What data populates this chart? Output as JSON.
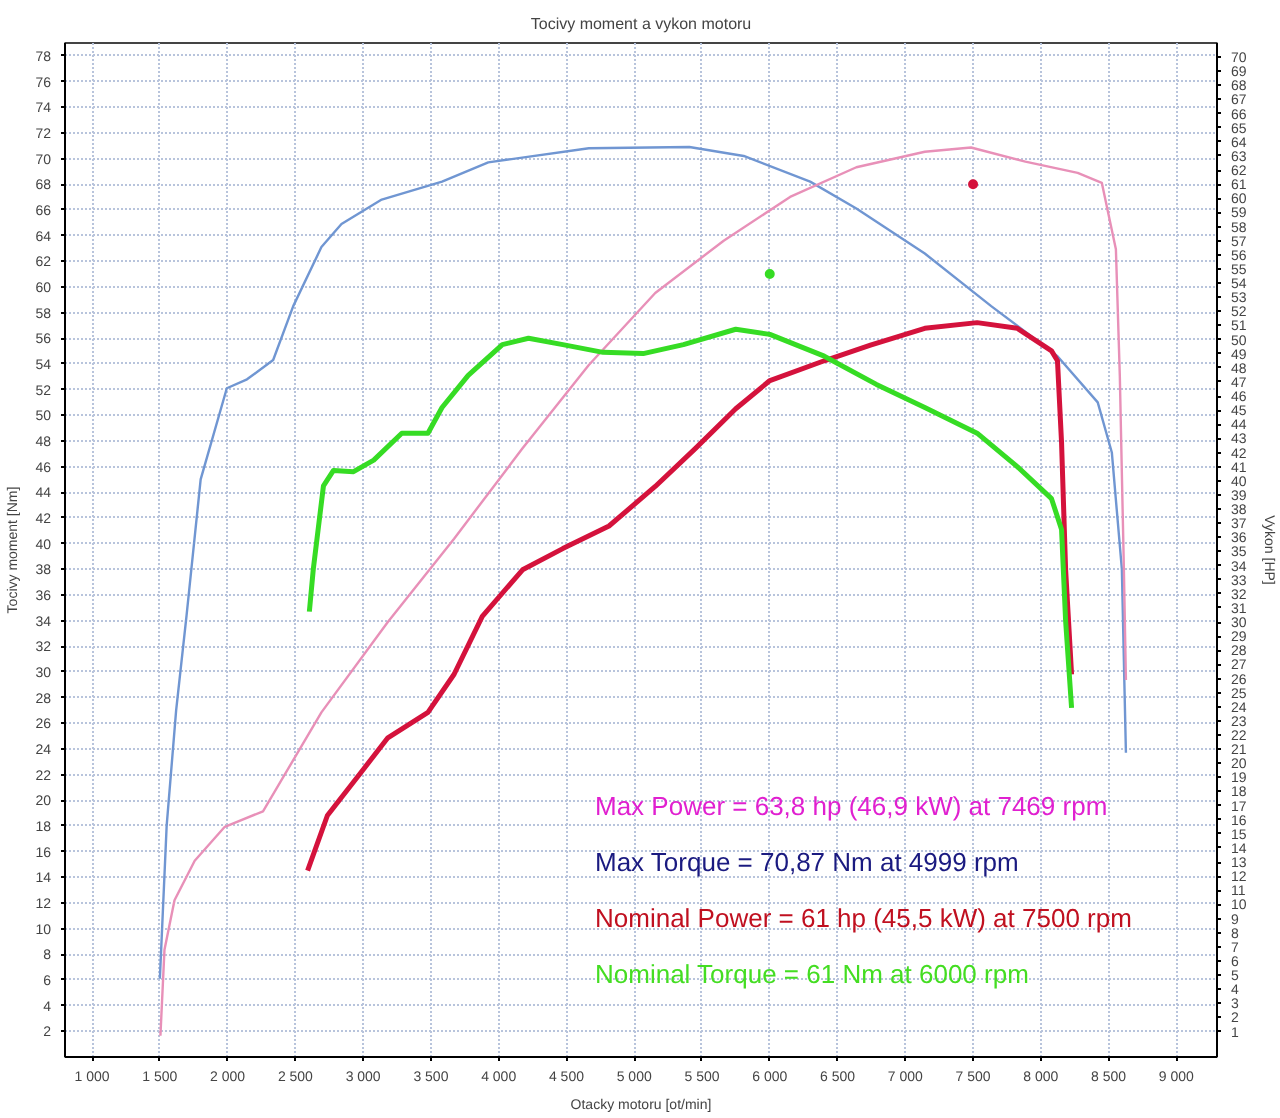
{
  "chart_data": {
    "type": "line",
    "title": "Tocivy moment a vykon motoru",
    "xlabel": "Otacky motoru [ot/min]",
    "ylabel": "Tocivy moment [Nm]",
    "y2label": "Vykon [HP]",
    "xlim": [
      800,
      9300
    ],
    "ylim": [
      0,
      79
    ],
    "y2lim": [
      -0.8,
      71
    ],
    "xticks": [
      {
        "value": 1000,
        "label": "1 000"
      },
      {
        "value": 1500,
        "label": "1 500"
      },
      {
        "value": 2000,
        "label": "2 000"
      },
      {
        "value": 2500,
        "label": "2 500"
      },
      {
        "value": 3000,
        "label": "3 000"
      },
      {
        "value": 3500,
        "label": "3 500"
      },
      {
        "value": 4000,
        "label": "4 000"
      },
      {
        "value": 4500,
        "label": "4 500"
      },
      {
        "value": 5000,
        "label": "5 000"
      },
      {
        "value": 5500,
        "label": "5 500"
      },
      {
        "value": 6000,
        "label": "6 000"
      },
      {
        "value": 6500,
        "label": "6 500"
      },
      {
        "value": 7000,
        "label": "7 000"
      },
      {
        "value": 7500,
        "label": "7 500"
      },
      {
        "value": 8000,
        "label": "8 000"
      },
      {
        "value": 8500,
        "label": "8 500"
      },
      {
        "value": 9000,
        "label": "9 000"
      }
    ],
    "yticks": [
      2,
      4,
      6,
      8,
      10,
      12,
      14,
      16,
      18,
      20,
      22,
      24,
      26,
      28,
      30,
      32,
      34,
      36,
      38,
      40,
      42,
      44,
      46,
      48,
      50,
      52,
      54,
      56,
      58,
      60,
      62,
      64,
      66,
      68,
      70,
      72,
      74,
      76,
      78
    ],
    "y2ticks": [
      1,
      2,
      3,
      4,
      5,
      6,
      7,
      8,
      9,
      10,
      11,
      12,
      13,
      14,
      15,
      16,
      17,
      18,
      19,
      20,
      21,
      22,
      23,
      24,
      25,
      26,
      27,
      28,
      29,
      30,
      31,
      32,
      33,
      34,
      35,
      36,
      37,
      38,
      39,
      40,
      41,
      42,
      43,
      44,
      45,
      46,
      47,
      48,
      49,
      50,
      51,
      52,
      53,
      54,
      55,
      56,
      57,
      58,
      59,
      60,
      61,
      62,
      63,
      64,
      65,
      66,
      67,
      68,
      69,
      70
    ],
    "grid": true,
    "series": [
      {
        "color": "#7096d2",
        "x": [
          1500,
          1550,
          1620,
          1697,
          1801,
          1994,
          2143,
          2336,
          2484,
          2692,
          2840,
          3137,
          3582,
          3923,
          4665,
          5407,
          5808,
          6298,
          6639,
          7144,
          7634,
          8123,
          8420,
          8524,
          8598,
          8628
        ],
        "values": [
          6.1,
          18,
          27,
          34.4,
          45.0,
          52.1,
          52.8,
          54.3,
          58.5,
          63.1,
          64.9,
          66.8,
          68.2,
          69.7,
          70.8,
          70.9,
          70.2,
          68.2,
          66.1,
          62.6,
          58.5,
          54.6,
          51.0,
          47.1,
          38.0,
          23.7
        ]
      },
      {
        "color": "#e890b8",
        "axis": "y2",
        "x": [
          1504,
          1534,
          1608,
          1757,
          1979,
          2261,
          2692,
          3182,
          3671,
          4176,
          4665,
          5155,
          5660,
          6150,
          6639,
          7144,
          7485,
          7886,
          8272,
          8450,
          8554,
          8583,
          8613,
          8628
        ],
        "values": [
          0.7,
          6.8,
          10.3,
          13.1,
          15.5,
          16.6,
          23.6,
          30.0,
          35.9,
          42.3,
          48.2,
          53.3,
          57.0,
          60.1,
          62.2,
          63.3,
          63.6,
          62.6,
          61.8,
          61.1,
          56.4,
          47.4,
          33.7,
          25.9
        ]
      },
      {
        "color": "#d4123c",
        "axis": "y2",
        "x": [
          2590,
          2736,
          2988,
          3182,
          3478,
          3671,
          3879,
          4176,
          4473,
          4814,
          5155,
          5452,
          5749,
          6001,
          6402,
          6743,
          7144,
          7530,
          7826,
          8079,
          8123,
          8153,
          8183,
          8227
        ],
        "values": [
          12.4,
          16.3,
          19.4,
          21.8,
          23.6,
          26.3,
          30.4,
          33.7,
          35.2,
          36.8,
          39.6,
          42.3,
          45.1,
          47.1,
          48.5,
          49.6,
          50.8,
          51.2,
          50.8,
          49.2,
          48.5,
          42.7,
          33.7,
          26.3
        ]
      },
      {
        "color": "#36dc24",
        "x": [
          2603,
          2632,
          2707,
          2781,
          2929,
          3078,
          3285,
          3478,
          3582,
          3775,
          4027,
          4220,
          4473,
          4770,
          5066,
          5363,
          5749,
          6001,
          6402,
          6787,
          7144,
          7530,
          7826,
          8079,
          8153,
          8183,
          8227
        ],
        "values": [
          34.7,
          38.0,
          44.5,
          45.7,
          45.6,
          46.5,
          48.6,
          48.6,
          50.6,
          53.1,
          55.5,
          56.0,
          55.5,
          54.9,
          54.8,
          55.5,
          56.7,
          56.3,
          54.6,
          52.4,
          50.6,
          48.6,
          46.0,
          43.5,
          41.1,
          34.0,
          27.2
        ]
      },
      {
        "type": "scatter",
        "color": "#d4123c",
        "axis": "y2",
        "x": [
          7500
        ],
        "values": [
          61
        ]
      },
      {
        "type": "scatter",
        "color": "#36dc24",
        "x": [
          6000
        ],
        "values": [
          61
        ]
      }
    ],
    "annotations": [
      "Max Power = 63,8 hp (46,9 kW) at 7469 rpm",
      "Max Torque = 70,87 Nm at 4999 rpm",
      "Nominal Power = 61 hp (45,5 kW) at 7500 rpm",
      "Nominal Torque = 61 Nm at 6000 rpm"
    ]
  }
}
